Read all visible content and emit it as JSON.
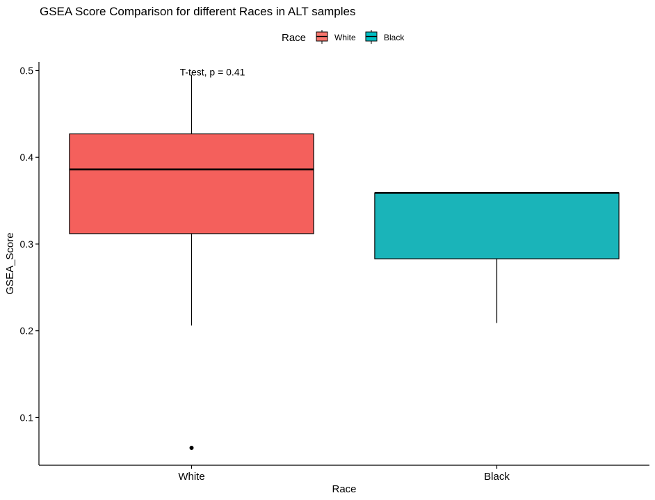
{
  "chart_data": {
    "type": "boxplot",
    "title": "GSEA Score Comparison for different Races in ALT samples",
    "xlabel": "Race",
    "ylabel": "GSEA_Score",
    "ylim": [
      0.045,
      0.51
    ],
    "yticks": [
      0.1,
      0.2,
      0.3,
      0.4,
      0.5
    ],
    "ytick_labels": [
      "0.1",
      "0.2",
      "0.3",
      "0.4",
      "0.5"
    ],
    "categories": [
      "White",
      "Black"
    ],
    "legend": {
      "title": "Race",
      "position": "top",
      "entries": [
        {
          "label": "White",
          "color": "#F8766D"
        },
        {
          "label": "Black",
          "color": "#00BFC4"
        }
      ]
    },
    "boxes": [
      {
        "category": "White",
        "color": "#F4605C",
        "whisker_low": 0.206,
        "q1": 0.312,
        "median": 0.386,
        "q3": 0.427,
        "whisker_high": 0.495,
        "outliers": [
          0.065
        ]
      },
      {
        "category": "Black",
        "color": "#1AB4B9",
        "whisker_low": 0.209,
        "q1": 0.283,
        "median": 0.359,
        "q3": 0.359,
        "whisker_high": 0.359,
        "outliers": []
      }
    ],
    "annotation": "T-test, p = 0.41",
    "annotation_y": 0.495,
    "grid": false
  }
}
